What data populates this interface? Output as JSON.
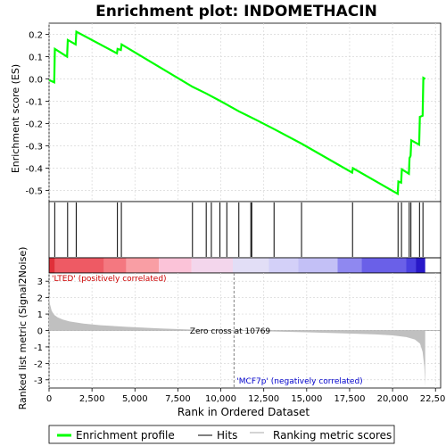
{
  "title": "Enrichment plot: INDOMETHACIN",
  "colors": {
    "curve": "#00ff00",
    "hits": "#000000",
    "metric_fill": "#c0c0c0",
    "grid": "#d8d8d8",
    "zero_line": "#808080",
    "cross_line": "#808080",
    "pos_label": "#cc0000",
    "neg_label": "#0000cc"
  },
  "chart_data": [
    {
      "type": "line",
      "panel": "enrichment",
      "ylabel": "Enrichment score (ES)",
      "ylim": [
        -0.55,
        0.25
      ],
      "yticks": [
        0.2,
        0.1,
        0.0,
        -0.1,
        -0.2,
        -0.3,
        -0.4,
        -0.5
      ],
      "ytick_labels": [
        "0.2",
        "0.1",
        "0.0",
        "-0.1",
        "-0.2",
        "-0.3",
        "-0.4",
        "-0.5"
      ],
      "xlim": [
        0,
        22800
      ],
      "grid": true,
      "series": [
        {
          "name": "Enrichment profile",
          "x": [
            0,
            300,
            340,
            1050,
            1090,
            1550,
            1590,
            3950,
            3990,
            4180,
            4220,
            8350,
            9150,
            10000,
            11050,
            12100,
            13100,
            14700,
            17650,
            17690,
            20300,
            20340,
            20500,
            20540,
            20950,
            20990,
            21050,
            21090,
            21550,
            21590,
            21750,
            21790,
            21900
          ],
          "y": [
            -0.005,
            -0.015,
            0.135,
            0.1,
            0.175,
            0.155,
            0.212,
            0.115,
            0.135,
            0.13,
            0.155,
            -0.035,
            -0.065,
            -0.1,
            -0.145,
            -0.185,
            -0.225,
            -0.29,
            -0.42,
            -0.4,
            -0.515,
            -0.46,
            -0.465,
            -0.405,
            -0.425,
            -0.355,
            -0.345,
            -0.275,
            -0.295,
            -0.17,
            -0.165,
            0.005,
            0.0
          ]
        }
      ]
    },
    {
      "type": "scatter",
      "panel": "hits",
      "legend_name": "Hits",
      "x": [
        330,
        1080,
        1580,
        3980,
        4210,
        8350,
        9150,
        9450,
        9950,
        10350,
        11050,
        11750,
        11800,
        13100,
        14700,
        17670,
        20320,
        20520,
        20970,
        21070,
        21570,
        21770
      ]
    },
    {
      "type": "heatmap",
      "panel": "ranked-list-colorbar",
      "segments": [
        {
          "from": 0,
          "to": 350,
          "color": "#e0303a"
        },
        {
          "from": 350,
          "to": 3200,
          "color": "#ee5a64"
        },
        {
          "from": 3200,
          "to": 4500,
          "color": "#f47880"
        },
        {
          "from": 4500,
          "to": 6400,
          "color": "#f99ea4"
        },
        {
          "from": 6400,
          "to": 8300,
          "color": "#fbc3d8"
        },
        {
          "from": 8300,
          "to": 10700,
          "color": "#f3d6ec"
        },
        {
          "from": 10700,
          "to": 12800,
          "color": "#e2def6"
        },
        {
          "from": 12800,
          "to": 14500,
          "color": "#d3d0f8"
        },
        {
          "from": 14500,
          "to": 16800,
          "color": "#c3c0f6"
        },
        {
          "from": 16800,
          "to": 18200,
          "color": "#8f88f0"
        },
        {
          "from": 18200,
          "to": 20800,
          "color": "#6a60e8"
        },
        {
          "from": 20800,
          "to": 21350,
          "color": "#4a40e0"
        },
        {
          "from": 21350,
          "to": 21900,
          "color": "#2818c8"
        }
      ]
    },
    {
      "type": "area",
      "panel": "ranked-metric",
      "ylabel": "Ranked list metric (Signal2Noise)",
      "xlabel": "Rank in Ordered Dataset",
      "ylim": [
        -3.5,
        3.5
      ],
      "yticks": [
        3,
        2,
        1,
        0,
        -1,
        -2,
        -3
      ],
      "ytick_labels": [
        "3",
        "2",
        "1",
        "0",
        "-1",
        "-2",
        "-3"
      ],
      "xlim": [
        0,
        22800
      ],
      "xticks": [
        0,
        2500,
        5000,
        7500,
        10000,
        12500,
        15000,
        17500,
        20000,
        22500
      ],
      "xtick_labels": [
        "0",
        "2,500",
        "5,000",
        "7,500",
        "10,000",
        "12,500",
        "15,000",
        "17,500",
        "20,000",
        "22,500"
      ],
      "x": [
        0,
        50,
        150,
        300,
        500,
        800,
        1200,
        2000,
        3000,
        4500,
        6500,
        8500,
        10769,
        13000,
        15000,
        17000,
        19000,
        20000,
        20800,
        21300,
        21600,
        21750,
        21850,
        21900
      ],
      "y": [
        2.2,
        1.6,
        1.2,
        0.95,
        0.8,
        0.66,
        0.55,
        0.42,
        0.32,
        0.22,
        0.12,
        0.05,
        0.0,
        -0.06,
        -0.11,
        -0.17,
        -0.24,
        -0.3,
        -0.4,
        -0.55,
        -0.8,
        -1.3,
        -2.2,
        -3.4
      ],
      "zero_cross": 10769,
      "zero_cross_label": "Zero cross at 10769",
      "pos_label": "'LTED' (positively correlated)",
      "neg_label": "'MCF7p' (negatively correlated)"
    }
  ],
  "legend": {
    "entries": [
      {
        "label": "Enrichment profile",
        "style": "thick-line"
      },
      {
        "label": "Hits",
        "style": "thin-line"
      },
      {
        "label": "Ranking metric scores",
        "style": "gray-line"
      }
    ]
  }
}
